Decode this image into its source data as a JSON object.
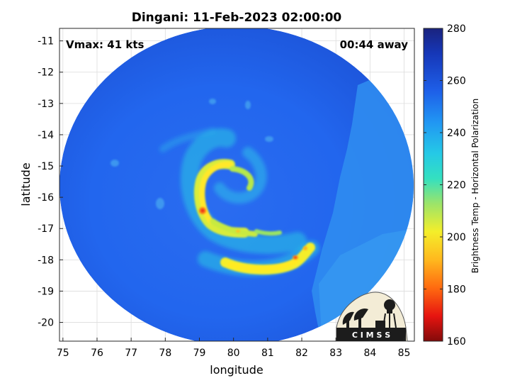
{
  "title": "Dingani: 11-Feb-2023 02:00:00",
  "vmax_label": "Vmax: 41 kts",
  "time_label": "00:44 away",
  "axes": {
    "xlabel": "longitude",
    "ylabel": "latitude",
    "xlim": [
      74.9,
      85.3
    ],
    "ylim": [
      -20.6,
      -10.6
    ],
    "xticks": [
      "75",
      "76",
      "77",
      "78",
      "79",
      "80",
      "81",
      "82",
      "83",
      "84",
      "85"
    ],
    "yticks": [
      "-11",
      "-12",
      "-13",
      "-14",
      "-15",
      "-16",
      "-17",
      "-18",
      "-19",
      "-20"
    ],
    "grid": true
  },
  "colorbar": {
    "label": "Brightness Temp - Horizontal Polarization",
    "ticks": [
      "280",
      "260",
      "240",
      "220",
      "200",
      "180",
      "160"
    ],
    "range": [
      160,
      280
    ]
  },
  "logo": {
    "text": "C I M S S"
  },
  "colors": {
    "background_blue": "#1f5fe6",
    "warm_band": "#ffee22",
    "warm_core": "#e81a10"
  }
}
